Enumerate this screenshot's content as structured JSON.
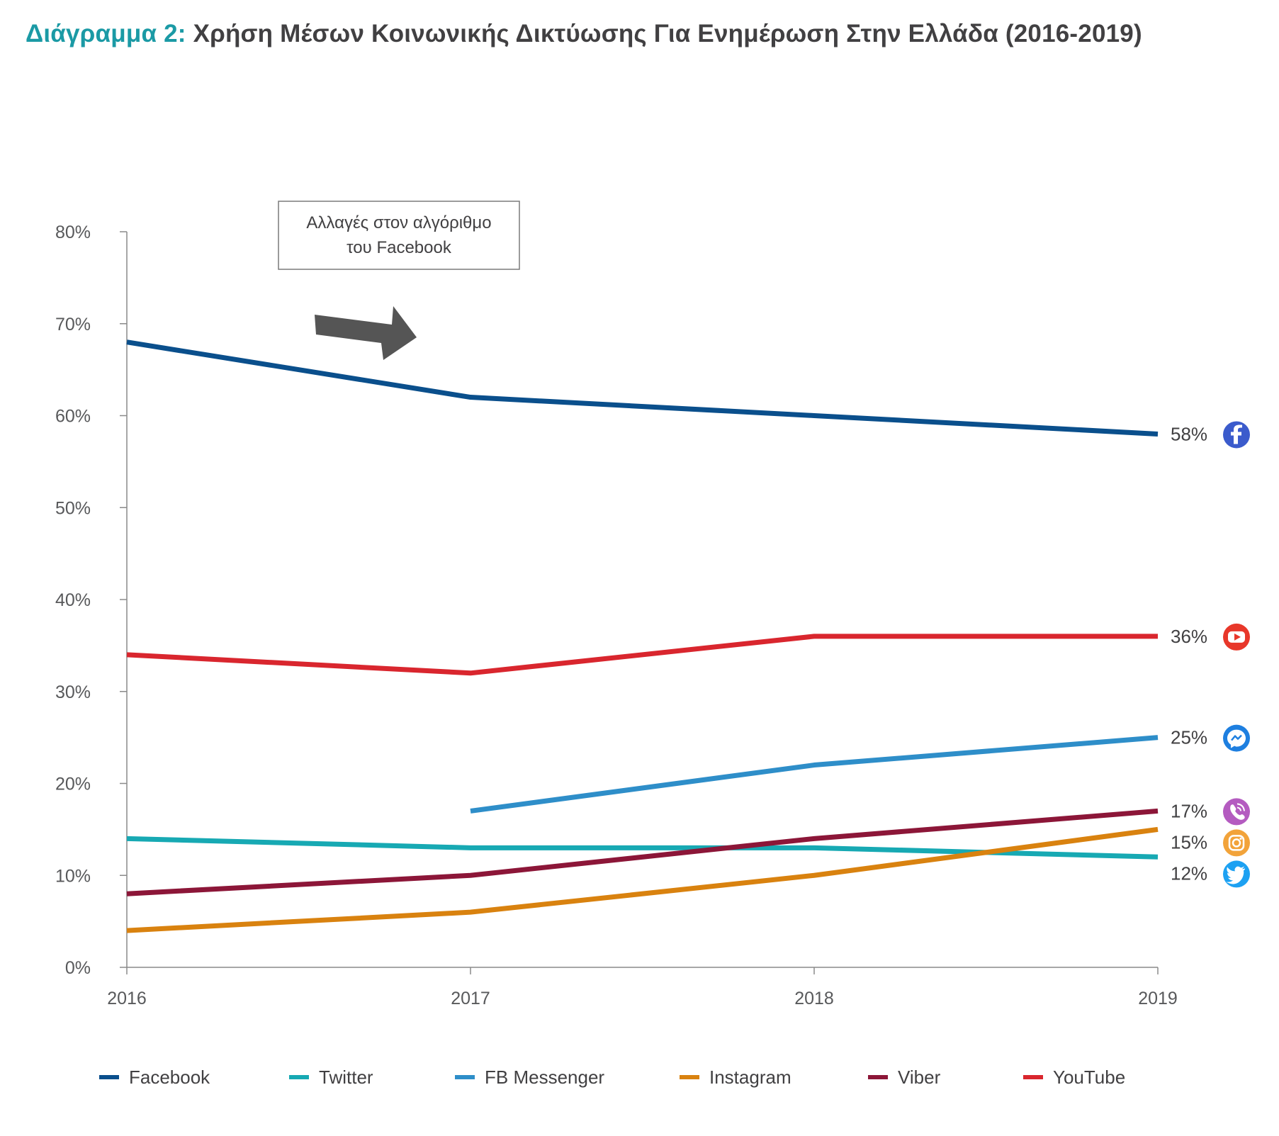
{
  "chart_data": {
    "type": "line",
    "title_prefix": "Διάγραμμα 2:",
    "title": "Χρήση Μέσων Κοινωνικής Δικτύωσης Για Ενημέρωση Στην Ελλάδα (2016-2019)",
    "xlabel": "",
    "ylabel": "",
    "x": [
      "2016",
      "2017",
      "2018",
      "2019"
    ],
    "ylim": [
      0,
      80
    ],
    "yticks": [
      "0%",
      "10%",
      "20%",
      "30%",
      "40%",
      "50%",
      "60%",
      "70%",
      "80%"
    ],
    "grid": false,
    "legend_position": "bottom",
    "annotation": {
      "lines": [
        "Αλλαγές στον αλγόριθμο",
        "του Facebook"
      ],
      "arrow": "right"
    },
    "series": [
      {
        "name": "Facebook",
        "color": "#0a4f8c",
        "values": [
          68,
          62,
          60,
          58
        ],
        "end_label": "58%",
        "icon": "facebook-icon",
        "icon_color": "#3b5bcc"
      },
      {
        "name": "Twitter",
        "color": "#17a9b3",
        "values": [
          14,
          13,
          13,
          12
        ],
        "end_label": "12%",
        "icon": "twitter-icon",
        "icon_color": "#1da1f2"
      },
      {
        "name": "FB Messenger",
        "color": "#2e8ec9",
        "values": [
          null,
          17,
          22,
          25
        ],
        "end_label": "25%",
        "icon": "messenger-icon",
        "icon_color": "#1e7fe0"
      },
      {
        "name": "Instagram",
        "color": "#d9820f",
        "values": [
          4,
          6,
          10,
          15
        ],
        "end_label": "15%",
        "icon": "instagram-icon",
        "icon_color": "#f2a33a"
      },
      {
        "name": "Viber",
        "color": "#8c1638",
        "values": [
          8,
          10,
          14,
          17
        ],
        "end_label": "17%",
        "icon": "viber-icon",
        "icon_color": "#b45bc0"
      },
      {
        "name": "YouTube",
        "color": "#d9262e",
        "values": [
          34,
          32,
          36,
          36
        ],
        "end_label": "36%",
        "icon": "youtube-icon",
        "icon_color": "#e8372a"
      }
    ]
  }
}
